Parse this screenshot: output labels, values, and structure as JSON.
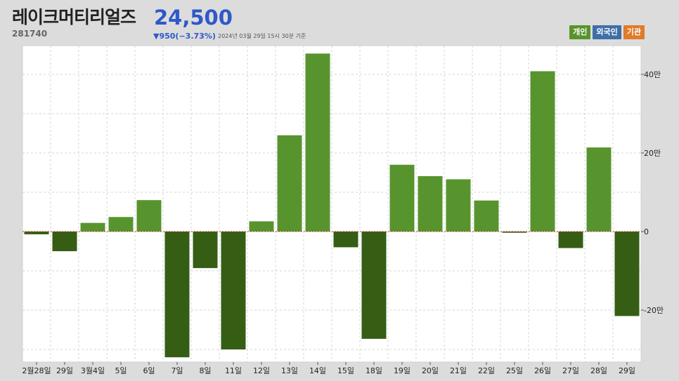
{
  "header": {
    "name": "레이크머티리얼즈",
    "price": "24,500",
    "code": "281740",
    "change": "▼950(−3.73%)",
    "timestamp": "2024년 03월 29일 15시 30분 기준"
  },
  "legend": {
    "individual": "개인",
    "foreign": "외국인",
    "institution": "기관"
  },
  "colors": {
    "positive": "#58942e",
    "negative": "#355e14",
    "zero_line": "#c0392b"
  },
  "chart_data": {
    "type": "bar",
    "categories": [
      "2월28일",
      "29일",
      "3월4일",
      "5일",
      "6일",
      "7일",
      "8일",
      "11일",
      "12일",
      "13일",
      "14일",
      "15일",
      "18일",
      "19일",
      "20일",
      "21일",
      "22일",
      "25일",
      "26일",
      "27일",
      "28일",
      "29일"
    ],
    "series": [
      {
        "name": "개인",
        "values": [
          -0.7,
          -5,
          2.2,
          3.7,
          8,
          -32,
          -9.3,
          -30,
          2.6,
          24.5,
          45.3,
          -4,
          -27.3,
          17,
          14.1,
          13.3,
          7.9,
          -0.3,
          40.8,
          -4.2,
          21.4,
          -21.5
        ]
      }
    ],
    "y_ticks": [
      {
        "value": 40,
        "label": "40만"
      },
      {
        "value": 20,
        "label": "20만"
      },
      {
        "value": 0,
        "label": "0"
      },
      {
        "value": -20,
        "label": "-20만"
      }
    ],
    "ylim": [
      -34,
      47
    ],
    "grid": true
  }
}
